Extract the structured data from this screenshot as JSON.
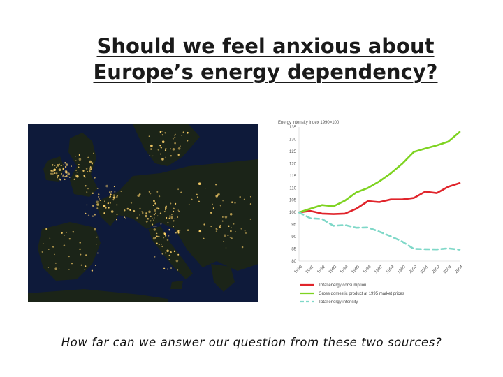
{
  "slide": {
    "title_line1": "Should we feel anxious about",
    "title_line2": "Europe’s energy dependency?",
    "caption": "How far can we answer our question from these two sources?"
  },
  "map_image": {
    "subject": "night-lights satellite view of Europe",
    "colors": {
      "sea": "#0e1a3a",
      "land": "#1b2418",
      "lights": "#ffd36a"
    }
  },
  "chart_data": {
    "type": "line",
    "title": "Energy intensity index 1990=100",
    "x": [
      "1990",
      "1991",
      "1992",
      "1993",
      "1994",
      "1995",
      "1996",
      "1997",
      "1998",
      "1999",
      "2000",
      "2001",
      "2002",
      "2003",
      "2004"
    ],
    "ylim": [
      80,
      135
    ],
    "yticks": [
      80,
      85,
      90,
      95,
      100,
      105,
      110,
      115,
      120,
      125,
      130,
      135
    ],
    "grid": false,
    "legend_position": "bottom",
    "series": [
      {
        "name": "Total energy consumption",
        "color": "#e0242b",
        "style": "solid",
        "values": [
          100,
          100.6,
          99.5,
          99.3,
          99.5,
          101.5,
          104.6,
          104.2,
          105.3,
          105.3,
          105.9,
          108.5,
          107.9,
          110.5,
          112.0
        ]
      },
      {
        "name": "Gross domestic product at 1995 market prices",
        "color": "#7ed321",
        "style": "solid",
        "values": [
          100,
          101.5,
          103.0,
          102.5,
          104.8,
          108.2,
          110.0,
          112.7,
          116.0,
          120.0,
          124.8,
          126.2,
          127.5,
          129.0,
          133.0
        ]
      },
      {
        "name": "Total energy intensity",
        "color": "#7fd8c8",
        "style": "dashed",
        "values": [
          100,
          97.6,
          97.3,
          94.5,
          94.8,
          93.7,
          93.8,
          92.1,
          90.2,
          88.0,
          85.0,
          84.9,
          84.8,
          85.2,
          84.7
        ]
      }
    ]
  }
}
